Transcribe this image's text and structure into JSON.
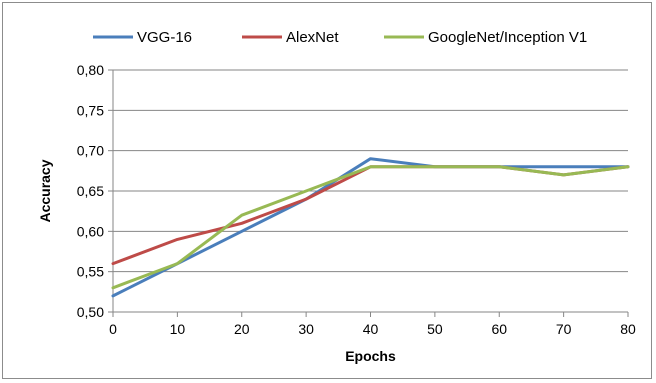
{
  "chart_data": {
    "type": "line",
    "title": "",
    "xlabel": "Epochs",
    "ylabel": "Accuracy",
    "x": [
      0,
      10,
      20,
      30,
      40,
      50,
      60,
      70,
      80
    ],
    "xlim": [
      0,
      80
    ],
    "ylim": [
      0.5,
      0.8
    ],
    "xticks": [
      "0",
      "10",
      "20",
      "30",
      "40",
      "50",
      "60",
      "70",
      "80"
    ],
    "yticks": [
      "0,50",
      "0,55",
      "0,60",
      "0,65",
      "0,70",
      "0,75",
      "0,80"
    ],
    "grid": "horizontal",
    "legend_position": "top",
    "series": [
      {
        "name": "VGG-16",
        "color": "#4a7ebb",
        "values": [
          0.52,
          0.56,
          0.6,
          0.64,
          0.69,
          0.68,
          0.68,
          0.68,
          0.68
        ]
      },
      {
        "name": "AlexNet",
        "color": "#be4b48",
        "values": [
          0.56,
          0.59,
          0.61,
          0.64,
          0.68,
          0.68,
          0.68,
          0.67,
          0.68
        ]
      },
      {
        "name": "GoogleNet/Inception V1",
        "color": "#98b954",
        "values": [
          0.53,
          0.56,
          0.62,
          0.65,
          0.68,
          0.68,
          0.68,
          0.67,
          0.68
        ]
      }
    ]
  }
}
